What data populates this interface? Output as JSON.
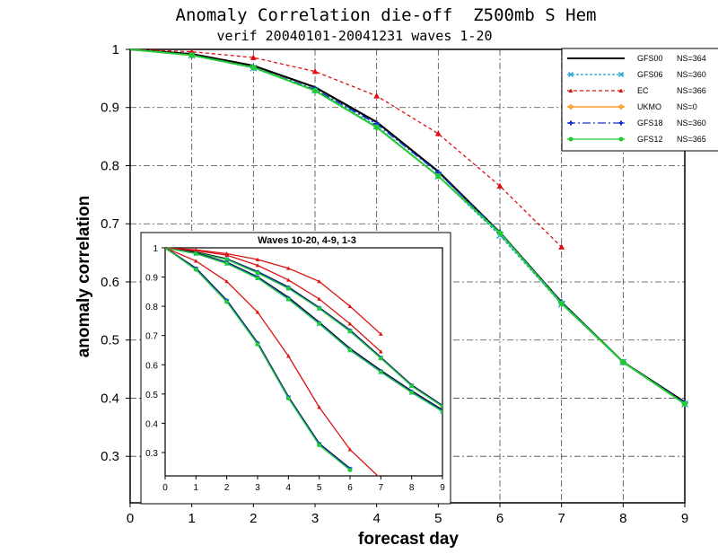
{
  "chart_data": [
    {
      "type": "line",
      "title": "Anomaly Correlation die-off  Z500mb S Hem",
      "subtitle": "verif 20040101-20041231 waves 1-20",
      "xlabel": "forecast day",
      "ylabel": "anomaly correlation",
      "xlim": [
        0,
        9
      ],
      "ylim": [
        0.22,
        1.0
      ],
      "x_ticks": [
        "0",
        "1",
        "2",
        "3",
        "4",
        "5",
        "6",
        "7",
        "8",
        "9"
      ],
      "y_ticks": [
        "1",
        "0.9",
        "0.8",
        "0.7",
        "0.6",
        "0.5",
        "0.4",
        "0.3"
      ],
      "grid": true,
      "legend_position": "top-right",
      "series": [
        {
          "name": "GFS00",
          "ns": "NS=364",
          "color": "#000000",
          "dash": "",
          "marker": "none",
          "x": [
            0,
            1,
            2,
            3,
            4,
            5,
            6,
            7,
            8,
            9
          ],
          "y": [
            1.0,
            0.992,
            0.972,
            0.935,
            0.875,
            0.79,
            0.685,
            0.565,
            0.462,
            0.393
          ]
        },
        {
          "name": "GFS06",
          "ns": "NS=360",
          "color": "#1a9fd0",
          "dash": "3,2",
          "marker": "x",
          "x": [
            0,
            1,
            2,
            3,
            4,
            5,
            6,
            7,
            8,
            9
          ],
          "y": [
            1.0,
            0.99,
            0.968,
            0.93,
            0.868,
            0.782,
            0.68,
            0.562,
            0.462,
            0.39
          ]
        },
        {
          "name": "EC",
          "ns": "NS=366",
          "color": "#dd1111",
          "dash": "4,3",
          "marker": "triangle",
          "x": [
            0,
            1,
            2,
            3,
            4,
            5,
            6,
            7
          ],
          "y": [
            1.0,
            0.996,
            0.986,
            0.962,
            0.92,
            0.855,
            0.765,
            0.66
          ]
        },
        {
          "name": "UKMO",
          "ns": "NS=0",
          "color": "#ff8800",
          "dash": "",
          "marker": "diamond",
          "x": [],
          "y": []
        },
        {
          "name": "GFS18",
          "ns": "NS=360",
          "color": "#1133cc",
          "dash": "9,3,2,3",
          "marker": "cross",
          "x": [
            0,
            1,
            2,
            3,
            4,
            5,
            6,
            7,
            8,
            9
          ],
          "y": [
            1.0,
            0.99,
            0.969,
            0.931,
            0.872,
            0.788,
            0.685,
            0.565,
            0.462,
            0.392
          ]
        },
        {
          "name": "GFS12",
          "ns": "NS=365",
          "color": "#22cc33",
          "dash": "",
          "marker": "dot",
          "x": [
            0,
            1,
            2,
            3,
            4,
            5,
            6,
            7,
            8,
            9
          ],
          "y": [
            1.0,
            0.99,
            0.969,
            0.929,
            0.866,
            0.782,
            0.684,
            0.563,
            0.462,
            0.39
          ]
        }
      ]
    },
    {
      "type": "line",
      "title": "Waves 10-20, 4-9, 1-3",
      "xlim": [
        0,
        9
      ],
      "ylim": [
        0.22,
        1.0
      ],
      "x_ticks": [
        "0",
        "1",
        "2",
        "3",
        "4",
        "5",
        "6",
        "7",
        "8",
        "9"
      ],
      "y_ticks": [
        "1",
        "0.9",
        "0.8",
        "0.7",
        "0.6",
        "0.5",
        "0.4",
        "0.3"
      ],
      "groups": [
        {
          "waves": "1-3",
          "series": [
            {
              "name": "GFS00",
              "color": "#000000",
              "x": [
                0,
                1,
                2,
                3,
                4,
                5,
                6,
                7,
                8,
                9
              ],
              "y": [
                1.0,
                0.985,
                0.962,
                0.918,
                0.865,
                0.795,
                0.718,
                0.625,
                0.53,
                0.46
              ]
            },
            {
              "name": "GFS06",
              "color": "#1a9fd0",
              "x": [
                0,
                1,
                2,
                3,
                4,
                5,
                6,
                7,
                8,
                9
              ],
              "y": [
                1.0,
                0.983,
                0.96,
                0.915,
                0.862,
                0.793,
                0.715,
                0.623,
                0.528,
                0.458
              ]
            },
            {
              "name": "EC",
              "color": "#dd1111",
              "x": [
                0,
                1,
                2,
                3,
                4,
                5,
                6,
                7
              ],
              "y": [
                1.0,
                0.993,
                0.98,
                0.96,
                0.93,
                0.885,
                0.8,
                0.705
              ]
            },
            {
              "name": "GFS18",
              "color": "#1133cc",
              "x": [
                0,
                1,
                2,
                3,
                4,
                5,
                6,
                7,
                8,
                9
              ],
              "y": [
                1.0,
                0.984,
                0.961,
                0.917,
                0.864,
                0.794,
                0.717,
                0.624,
                0.529,
                0.459
              ]
            },
            {
              "name": "GFS12",
              "color": "#22cc33",
              "x": [
                0,
                1,
                2,
                3,
                4,
                5,
                6,
                7,
                8,
                9
              ],
              "y": [
                1.0,
                0.983,
                0.96,
                0.914,
                0.861,
                0.792,
                0.714,
                0.622,
                0.527,
                0.457
              ]
            }
          ]
        },
        {
          "waves": "4-9",
          "series": [
            {
              "name": "GFS00",
              "color": "#000000",
              "x": [
                0,
                1,
                2,
                3,
                4,
                5,
                6,
                7,
                8,
                9
              ],
              "y": [
                1.0,
                0.982,
                0.95,
                0.9,
                0.83,
                0.745,
                0.655,
                0.58,
                0.51,
                0.445
              ]
            },
            {
              "name": "GFS06",
              "color": "#1a9fd0",
              "x": [
                0,
                1,
                2,
                3,
                4,
                5,
                6,
                7,
                8,
                9
              ],
              "y": [
                1.0,
                0.98,
                0.947,
                0.897,
                0.825,
                0.74,
                0.65,
                0.575,
                0.505,
                0.44
              ]
            },
            {
              "name": "EC",
              "color": "#dd1111",
              "x": [
                0,
                1,
                2,
                3,
                4,
                5,
                6,
                7
              ],
              "y": [
                1.0,
                0.99,
                0.975,
                0.94,
                0.89,
                0.825,
                0.74,
                0.645
              ]
            },
            {
              "name": "GFS18",
              "color": "#1133cc",
              "x": [
                0,
                1,
                2,
                3,
                4,
                5,
                6,
                7,
                8,
                9
              ],
              "y": [
                1.0,
                0.981,
                0.949,
                0.899,
                0.828,
                0.743,
                0.653,
                0.578,
                0.508,
                0.443
              ]
            },
            {
              "name": "GFS12",
              "color": "#22cc33",
              "x": [
                0,
                1,
                2,
                3,
                4,
                5,
                6,
                7,
                8,
                9
              ],
              "y": [
                1.0,
                0.98,
                0.946,
                0.896,
                0.824,
                0.74,
                0.65,
                0.575,
                0.505,
                0.44
              ]
            }
          ]
        },
        {
          "waves": "10-20",
          "series": [
            {
              "name": "GFS00",
              "color": "#000000",
              "x": [
                0,
                1,
                2,
                3,
                4,
                5,
                6
              ],
              "y": [
                1.0,
                0.93,
                0.82,
                0.675,
                0.49,
                0.33,
                0.245
              ]
            },
            {
              "name": "GFS06",
              "color": "#1a9fd0",
              "x": [
                0,
                1,
                2,
                3,
                4,
                5,
                6
              ],
              "y": [
                1.0,
                0.928,
                0.818,
                0.672,
                0.488,
                0.328,
                0.243
              ]
            },
            {
              "name": "EC",
              "color": "#dd1111",
              "x": [
                0,
                1,
                2,
                3,
                4,
                5,
                6,
                7
              ],
              "y": [
                1.0,
                0.955,
                0.885,
                0.78,
                0.63,
                0.455,
                0.31,
                0.21
              ]
            },
            {
              "name": "GFS18",
              "color": "#1133cc",
              "x": [
                0,
                1,
                2,
                3,
                4,
                5,
                6
              ],
              "y": [
                1.0,
                0.929,
                0.819,
                0.674,
                0.489,
                0.329,
                0.244
              ]
            },
            {
              "name": "GFS12",
              "color": "#22cc33",
              "x": [
                0,
                1,
                2,
                3,
                4,
                5,
                6
              ],
              "y": [
                1.0,
                0.925,
                0.815,
                0.67,
                0.485,
                0.325,
                0.24
              ]
            }
          ]
        }
      ]
    }
  ]
}
